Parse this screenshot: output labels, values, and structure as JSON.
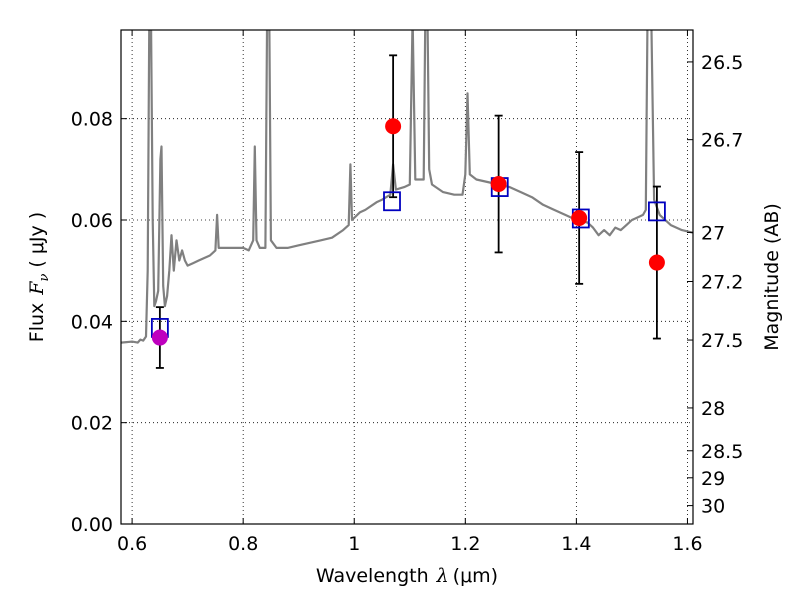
{
  "chart_data": {
    "type": "scatter",
    "xlabel": "Wavelength",
    "xlabel_symbol": "λ",
    "xlabel_unit": "(μm)",
    "ylabel": "Flux",
    "ylabel_symbol": "F",
    "ylabel_subscript": "ν",
    "ylabel_unit": "( μJy )",
    "y2label": "Magnitude (AB)",
    "xlim": [
      0.58,
      1.61
    ],
    "ylim": [
      0.0,
      0.0975
    ],
    "grid": true,
    "x_ticks": [
      0.6,
      0.8,
      1.0,
      1.2,
      1.4,
      1.6
    ],
    "x_tick_labels": [
      "0.6",
      "0.8",
      "1",
      "1.2",
      "1.4",
      "1.6"
    ],
    "y_ticks": [
      0.0,
      0.02,
      0.04,
      0.06,
      0.08
    ],
    "y_tick_labels": [
      "0.00",
      "0.02",
      "0.04",
      "0.06",
      "0.08"
    ],
    "mag_ticks": [
      26.5,
      26.7,
      27,
      27.2,
      27.5,
      28,
      28.5,
      29,
      30
    ],
    "mag_tick_labels": [
      "26.5",
      "26.7",
      "27",
      "27.2",
      "27.5",
      "28",
      "28.5",
      "29",
      "30"
    ],
    "observed": [
      {
        "x": 1.07,
        "y": 0.0785,
        "err": 0.014,
        "color": "#ff0000"
      },
      {
        "x": 1.26,
        "y": 0.0671,
        "err": 0.0135,
        "color": "#ff0000"
      },
      {
        "x": 1.405,
        "y": 0.0604,
        "err": 0.013,
        "color": "#ff0000"
      },
      {
        "x": 1.545,
        "y": 0.0516,
        "err": 0.015,
        "color": "#ff0000"
      },
      {
        "x": 0.65,
        "y": 0.0368,
        "err": 0.006,
        "color": "#bf00bf"
      }
    ],
    "model_points": [
      {
        "x": 0.65,
        "y": 0.0387
      },
      {
        "x": 1.068,
        "y": 0.0637
      },
      {
        "x": 1.262,
        "y": 0.0665
      },
      {
        "x": 1.408,
        "y": 0.0603
      },
      {
        "x": 1.545,
        "y": 0.0617
      }
    ],
    "spectrum_color": "#808080",
    "observed_error_color": "#000000",
    "model_point_color": "#0000bf",
    "spectrum": [
      [
        0.58,
        0.0358
      ],
      [
        0.6,
        0.036
      ],
      [
        0.61,
        0.0358
      ],
      [
        0.615,
        0.0364
      ],
      [
        0.62,
        0.0362
      ],
      [
        0.625,
        0.037
      ],
      [
        0.628,
        0.05
      ],
      [
        0.631,
        0.1
      ],
      [
        0.634,
        0.1
      ],
      [
        0.637,
        0.06
      ],
      [
        0.64,
        0.043
      ],
      [
        0.643,
        0.044
      ],
      [
        0.647,
        0.046
      ],
      [
        0.651,
        0.072
      ],
      [
        0.653,
        0.0745
      ],
      [
        0.656,
        0.047
      ],
      [
        0.659,
        0.043
      ],
      [
        0.663,
        0.045
      ],
      [
        0.667,
        0.05
      ],
      [
        0.671,
        0.057
      ],
      [
        0.675,
        0.05
      ],
      [
        0.68,
        0.056
      ],
      [
        0.685,
        0.052
      ],
      [
        0.69,
        0.054
      ],
      [
        0.695,
        0.052
      ],
      [
        0.7,
        0.051
      ],
      [
        0.71,
        0.0515
      ],
      [
        0.72,
        0.052
      ],
      [
        0.73,
        0.0525
      ],
      [
        0.74,
        0.053
      ],
      [
        0.75,
        0.054
      ],
      [
        0.753,
        0.061
      ],
      [
        0.756,
        0.0545
      ],
      [
        0.77,
        0.0545
      ],
      [
        0.79,
        0.0545
      ],
      [
        0.8,
        0.0545
      ],
      [
        0.81,
        0.054
      ],
      [
        0.818,
        0.056
      ],
      [
        0.821,
        0.0745
      ],
      [
        0.824,
        0.056
      ],
      [
        0.83,
        0.0545
      ],
      [
        0.84,
        0.0545
      ],
      [
        0.843,
        0.1
      ],
      [
        0.847,
        0.1
      ],
      [
        0.85,
        0.056
      ],
      [
        0.86,
        0.0545
      ],
      [
        0.88,
        0.0545
      ],
      [
        0.9,
        0.055
      ],
      [
        0.92,
        0.0555
      ],
      [
        0.94,
        0.056
      ],
      [
        0.96,
        0.0565
      ],
      [
        0.98,
        0.058
      ],
      [
        0.99,
        0.059
      ],
      [
        0.993,
        0.071
      ],
      [
        0.996,
        0.06
      ],
      [
        1.01,
        0.0615
      ],
      [
        1.02,
        0.062
      ],
      [
        1.04,
        0.0635
      ],
      [
        1.05,
        0.064
      ],
      [
        1.065,
        0.065
      ],
      [
        1.07,
        0.071
      ],
      [
        1.075,
        0.066
      ],
      [
        1.09,
        0.0665
      ],
      [
        1.1,
        0.067
      ],
      [
        1.105,
        0.1
      ],
      [
        1.11,
        0.068
      ],
      [
        1.125,
        0.068
      ],
      [
        1.128,
        0.1
      ],
      [
        1.132,
        0.1
      ],
      [
        1.135,
        0.07
      ],
      [
        1.14,
        0.067
      ],
      [
        1.16,
        0.0655
      ],
      [
        1.18,
        0.065
      ],
      [
        1.195,
        0.065
      ],
      [
        1.2,
        0.069
      ],
      [
        1.204,
        0.085
      ],
      [
        1.208,
        0.069
      ],
      [
        1.22,
        0.068
      ],
      [
        1.24,
        0.0675
      ],
      [
        1.26,
        0.067
      ],
      [
        1.28,
        0.0665
      ],
      [
        1.3,
        0.0655
      ],
      [
        1.32,
        0.0645
      ],
      [
        1.34,
        0.063
      ],
      [
        1.36,
        0.062
      ],
      [
        1.38,
        0.061
      ],
      [
        1.4,
        0.06
      ],
      [
        1.42,
        0.0595
      ],
      [
        1.43,
        0.0585
      ],
      [
        1.44,
        0.057
      ],
      [
        1.45,
        0.058
      ],
      [
        1.46,
        0.057
      ],
      [
        1.47,
        0.0585
      ],
      [
        1.48,
        0.058
      ],
      [
        1.49,
        0.059
      ],
      [
        1.5,
        0.06
      ],
      [
        1.51,
        0.0605
      ],
      [
        1.52,
        0.061
      ],
      [
        1.525,
        0.062
      ],
      [
        1.528,
        0.1
      ],
      [
        1.535,
        0.1
      ],
      [
        1.54,
        0.064
      ],
      [
        1.55,
        0.061
      ],
      [
        1.57,
        0.059
      ],
      [
        1.59,
        0.058
      ],
      [
        1.61,
        0.0575
      ]
    ]
  }
}
